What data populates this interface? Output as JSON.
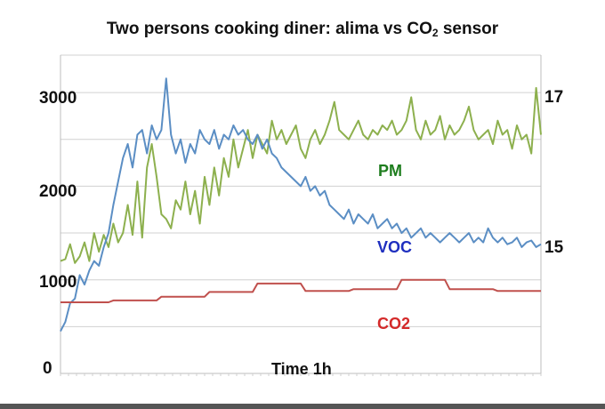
{
  "title": {
    "main": "Two persons cooking diner: alima vs CO",
    "sub": "2",
    "tail": " sensor"
  },
  "chart_data": {
    "type": "line",
    "xlabel": "Time 1h",
    "x_range": [
      0,
      1
    ],
    "y_left": {
      "ticks": [
        "0",
        "1000",
        "2000",
        "3000"
      ],
      "range": [
        0,
        3400
      ]
    },
    "y_right": {
      "ticks": [
        "15",
        "17"
      ],
      "values": [
        15,
        17
      ]
    },
    "grid": true,
    "series": [
      {
        "name": "PM",
        "color": "#8db04e",
        "label_position": "mid-right",
        "x": [
          0.0,
          0.01,
          0.02,
          0.03,
          0.04,
          0.05,
          0.06,
          0.07,
          0.08,
          0.09,
          0.1,
          0.11,
          0.12,
          0.13,
          0.14,
          0.15,
          0.16,
          0.17,
          0.18,
          0.19,
          0.2,
          0.21,
          0.22,
          0.23,
          0.24,
          0.25,
          0.26,
          0.27,
          0.28,
          0.29,
          0.3,
          0.31,
          0.32,
          0.33,
          0.34,
          0.35,
          0.36,
          0.37,
          0.38,
          0.39,
          0.4,
          0.41,
          0.42,
          0.43,
          0.44,
          0.45,
          0.46,
          0.47,
          0.48,
          0.49,
          0.5,
          0.51,
          0.52,
          0.53,
          0.54,
          0.55,
          0.56,
          0.57,
          0.58,
          0.59,
          0.6,
          0.61,
          0.62,
          0.63,
          0.64,
          0.65,
          0.66,
          0.67,
          0.68,
          0.69,
          0.7,
          0.71,
          0.72,
          0.73,
          0.74,
          0.75,
          0.76,
          0.77,
          0.78,
          0.79,
          0.8,
          0.81,
          0.82,
          0.83,
          0.84,
          0.85,
          0.86,
          0.87,
          0.88,
          0.89,
          0.9,
          0.91,
          0.92,
          0.93,
          0.94,
          0.95,
          0.96,
          0.97,
          0.98,
          0.99,
          1.0
        ],
        "y": [
          1200,
          1220,
          1380,
          1180,
          1250,
          1400,
          1200,
          1500,
          1300,
          1480,
          1350,
          1600,
          1400,
          1500,
          1800,
          1480,
          2050,
          1450,
          2200,
          2450,
          2100,
          1700,
          1650,
          1550,
          1850,
          1750,
          2050,
          1700,
          1950,
          1600,
          2100,
          1800,
          2200,
          1900,
          2300,
          2100,
          2500,
          2200,
          2400,
          2600,
          2300,
          2550,
          2450,
          2350,
          2700,
          2500,
          2600,
          2450,
          2550,
          2650,
          2400,
          2300,
          2500,
          2600,
          2450,
          2550,
          2700,
          2900,
          2600,
          2550,
          2500,
          2600,
          2700,
          2550,
          2500,
          2600,
          2550,
          2650,
          2600,
          2700,
          2550,
          2600,
          2700,
          2950,
          2600,
          2500,
          2700,
          2550,
          2600,
          2750,
          2500,
          2650,
          2550,
          2600,
          2700,
          2850,
          2600,
          2500,
          2550,
          2600,
          2450,
          2700,
          2550,
          2600,
          2400,
          2650,
          2500,
          2550,
          2350,
          3050,
          2550
        ],
        "note_unit": "left axis units"
      },
      {
        "name": "VOC",
        "color": "#5b8ec4",
        "x": [
          0.0,
          0.01,
          0.02,
          0.03,
          0.04,
          0.05,
          0.06,
          0.07,
          0.08,
          0.09,
          0.1,
          0.11,
          0.12,
          0.13,
          0.14,
          0.15,
          0.16,
          0.17,
          0.18,
          0.19,
          0.2,
          0.21,
          0.22,
          0.23,
          0.24,
          0.25,
          0.26,
          0.27,
          0.28,
          0.29,
          0.3,
          0.31,
          0.32,
          0.33,
          0.34,
          0.35,
          0.36,
          0.37,
          0.38,
          0.39,
          0.4,
          0.41,
          0.42,
          0.43,
          0.44,
          0.45,
          0.46,
          0.47,
          0.48,
          0.49,
          0.5,
          0.51,
          0.52,
          0.53,
          0.54,
          0.55,
          0.56,
          0.57,
          0.58,
          0.59,
          0.6,
          0.61,
          0.62,
          0.63,
          0.64,
          0.65,
          0.66,
          0.67,
          0.68,
          0.69,
          0.7,
          0.71,
          0.72,
          0.73,
          0.74,
          0.75,
          0.76,
          0.77,
          0.78,
          0.79,
          0.8,
          0.81,
          0.82,
          0.83,
          0.84,
          0.85,
          0.86,
          0.87,
          0.88,
          0.89,
          0.9,
          0.91,
          0.92,
          0.93,
          0.94,
          0.95,
          0.96,
          0.97,
          0.98,
          0.99,
          1.0
        ],
        "y": [
          450,
          550,
          750,
          800,
          1050,
          950,
          1100,
          1200,
          1150,
          1350,
          1500,
          1800,
          2050,
          2300,
          2450,
          2200,
          2550,
          2600,
          2350,
          2650,
          2500,
          2600,
          3150,
          2550,
          2350,
          2500,
          2250,
          2450,
          2350,
          2600,
          2500,
          2450,
          2600,
          2400,
          2550,
          2500,
          2650,
          2550,
          2600,
          2500,
          2450,
          2550,
          2400,
          2500,
          2350,
          2300,
          2200,
          2150,
          2100,
          2050,
          2000,
          2100,
          1950,
          2000,
          1900,
          1950,
          1800,
          1750,
          1700,
          1650,
          1750,
          1600,
          1700,
          1650,
          1600,
          1700,
          1550,
          1600,
          1650,
          1550,
          1600,
          1500,
          1550,
          1450,
          1500,
          1550,
          1450,
          1500,
          1450,
          1400,
          1450,
          1500,
          1450,
          1400,
          1450,
          1500,
          1400,
          1450,
          1400,
          1550,
          1450,
          1400,
          1450,
          1380,
          1400,
          1450,
          1350,
          1400,
          1420,
          1350,
          1380
        ],
        "note_unit": "left axis units"
      },
      {
        "name": "CO2",
        "color": "#c0504d",
        "x": [
          0.0,
          0.1,
          0.11,
          0.2,
          0.21,
          0.3,
          0.31,
          0.4,
          0.41,
          0.5,
          0.51,
          0.6,
          0.61,
          0.7,
          0.71,
          0.8,
          0.81,
          0.9,
          0.91,
          1.0
        ],
        "y": [
          760,
          760,
          780,
          780,
          820,
          820,
          870,
          870,
          960,
          960,
          880,
          880,
          900,
          900,
          1000,
          1000,
          900,
          900,
          880,
          880
        ],
        "note_unit": "left axis units"
      }
    ]
  },
  "labels": {
    "pm": "PM",
    "voc": "VOC",
    "co2": "CO2",
    "pm_color": "#1e7d1e",
    "voc_color": "#1f2fbf",
    "co2_color": "#d42a2a"
  }
}
